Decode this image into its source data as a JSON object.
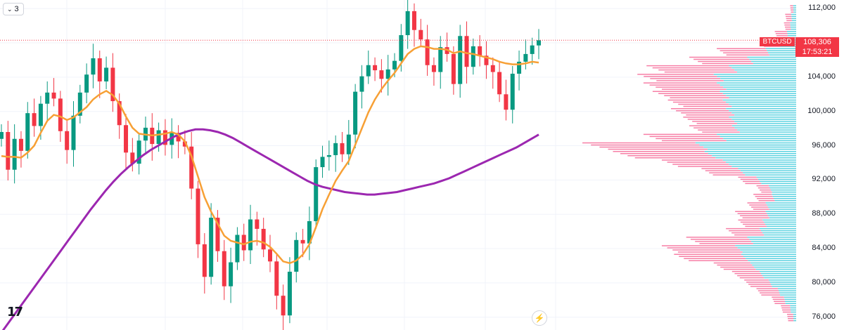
{
  "toolbar": {
    "indicators_count": "3"
  },
  "symbol": "BTCUSD",
  "last_price": "108,306",
  "countdown": "17:53:21",
  "colors": {
    "up": "#089981",
    "down": "#f23645",
    "ma_fast": "#f7a035",
    "ma_slow": "#9c27b0",
    "volume_profile_up": "#5bd2e0",
    "volume_profile_down": "#f77fa6",
    "grid": "#f0f3fa",
    "price_line": "#f23645"
  },
  "icons": {
    "logo": "tradingview-logo",
    "flash": "lightning-icon"
  },
  "chart_data": {
    "type": "candlestick",
    "y_axis": {
      "ticks": [
        76000,
        80000,
        84000,
        88000,
        92000,
        96000,
        100000,
        104000,
        108000,
        112000
      ],
      "tick_labels": [
        "76,000",
        "80,000",
        "84,000",
        "88,000",
        "92,000",
        "96,000",
        "100,000",
        "104,000",
        "108,000",
        "112,000"
      ],
      "range": [
        74500,
        113000
      ]
    },
    "grid": true,
    "last_price": 108306,
    "close": [
      97600,
      93200,
      96800,
      95400,
      99800,
      98300,
      100900,
      102200,
      101500,
      97700,
      95500,
      99500,
      102200,
      104300,
      106200,
      103500,
      105100,
      101200,
      98400,
      95200,
      93900,
      96600,
      98100,
      96200,
      97800,
      96100,
      97500,
      96500,
      95900,
      91000,
      84500,
      80700,
      87600,
      83700,
      79600,
      82400,
      85600,
      83800,
      87400,
      86300,
      83900,
      82500,
      78500,
      76200,
      81300,
      85000,
      84600,
      87200,
      93500,
      94700,
      94900,
      96300,
      95000,
      97300,
      102300,
      104100,
      105400,
      104800,
      103800,
      104900,
      105900,
      108900,
      111700,
      109500,
      108400,
      105400,
      104600,
      107500,
      106700,
      103200,
      108800,
      105200,
      107600,
      106500,
      105400,
      104600,
      102000,
      100200,
      104400,
      105800,
      106700,
      107700,
      108306
    ],
    "ma_fast": [
      94800,
      94700,
      94700,
      94600,
      95200,
      96000,
      97500,
      98900,
      99600,
      99400,
      99000,
      99300,
      99900,
      100500,
      101400,
      102000,
      102400,
      101900,
      100900,
      99400,
      98100,
      97400,
      97300,
      97200,
      97300,
      97400,
      97600,
      97300,
      96500,
      94800,
      92400,
      90000,
      88300,
      86900,
      85500,
      84900,
      84700,
      84500,
      84800,
      84900,
      84700,
      84200,
      83400,
      82500,
      82300,
      82600,
      83300,
      84500,
      86500,
      88600,
      90300,
      91900,
      93100,
      94200,
      96100,
      98000,
      99900,
      101400,
      102600,
      103600,
      104500,
      105600,
      106700,
      107300,
      107600,
      107500,
      107300,
      107300,
      107200,
      106800,
      107000,
      106800,
      106700,
      106500,
      106300,
      106100,
      105800,
      105600,
      105500,
      105500,
      105600,
      105800,
      105700
    ],
    "ma_slow": [
      74200,
      75400,
      76600,
      77800,
      79000,
      80200,
      81400,
      82600,
      83800,
      85000,
      86200,
      87400,
      88600,
      89700,
      90800,
      91800,
      92700,
      93500,
      94200,
      94900,
      95500,
      96000,
      96500,
      97000,
      97400,
      97700,
      97900,
      97900,
      97800,
      97600,
      97300,
      96900,
      96400,
      95900,
      95400,
      94900,
      94400,
      93900,
      93400,
      92900,
      92400,
      91900,
      91500,
      91200,
      91000,
      90800,
      90600,
      90500,
      90400,
      90300,
      90300,
      90400,
      90500,
      90600,
      90800,
      91000,
      91200,
      91400,
      91600,
      91900,
      92200,
      92600,
      93000,
      93400,
      93800,
      94200,
      94600,
      95000,
      95400,
      95800,
      96300,
      96800,
      97300
    ],
    "volume_profile": {
      "price_levels": [
        76000,
        77000,
        78000,
        79000,
        80000,
        81000,
        82000,
        83000,
        84000,
        85000,
        86000,
        87000,
        88000,
        89000,
        90000,
        91000,
        92000,
        93000,
        94000,
        95000,
        96000,
        97000,
        98000,
        99000,
        100000,
        101000,
        102000,
        103000,
        104000,
        105000,
        106000,
        107000,
        108000,
        109000,
        110000,
        111000,
        112000
      ],
      "up_volume": [
        5,
        10,
        20,
        30,
        45,
        60,
        75,
        90,
        100,
        80,
        60,
        55,
        50,
        50,
        40,
        45,
        65,
        95,
        120,
        150,
        165,
        130,
        105,
        110,
        115,
        120,
        125,
        130,
        135,
        110,
        80,
        50,
        30,
        15,
        10,
        8,
        5
      ],
      "down_volume": [
        10,
        15,
        20,
        35,
        40,
        45,
        60,
        110,
        120,
        100,
        55,
        40,
        50,
        30,
        30,
        20,
        30,
        60,
        100,
        150,
        185,
        120,
        70,
        75,
        90,
        90,
        110,
        120,
        125,
        135,
        95,
        80,
        30,
        20,
        10,
        10,
        5
      ]
    }
  }
}
